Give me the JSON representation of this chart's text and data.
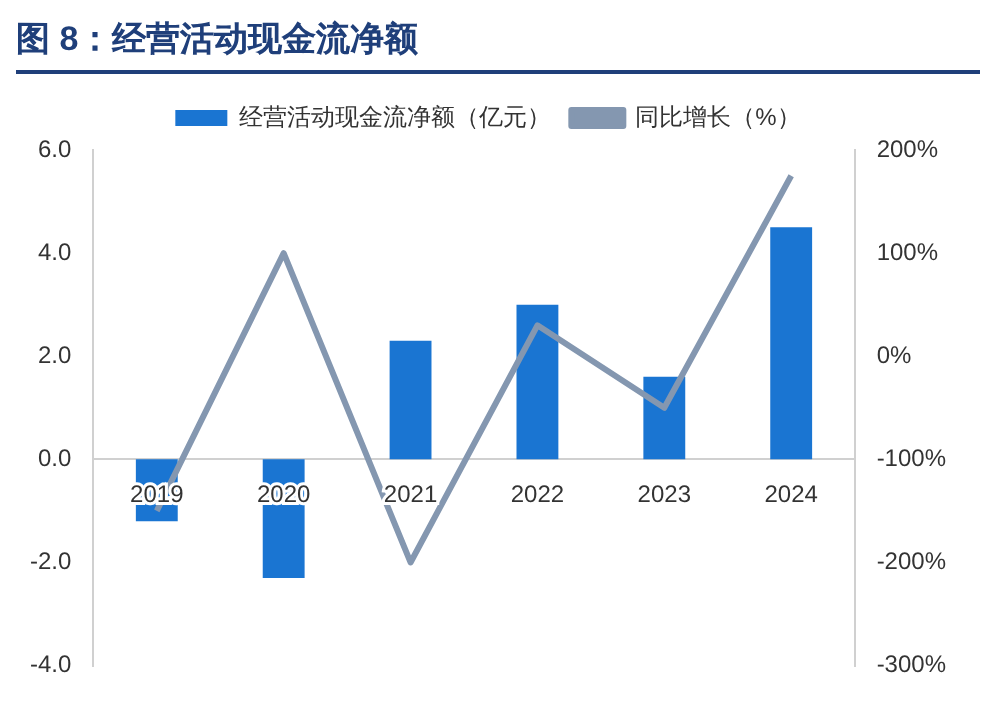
{
  "chart_data": {
    "type": "bar",
    "title": "图 8：经营活动现金流净额",
    "categories": [
      "2019",
      "2020",
      "2021",
      "2022",
      "2023",
      "2024"
    ],
    "series": [
      {
        "name": "经营活动现金流净额（亿元）",
        "color": "#1a75d2",
        "values": [
          -1.2,
          -2.3,
          2.3,
          3.0,
          1.6,
          4.5
        ]
      },
      {
        "name": "同比增长（%）",
        "type": "line",
        "axis": "y2",
        "color": "#8497b0",
        "values": [
          -150,
          100,
          -200,
          30,
          -50,
          175
        ]
      }
    ],
    "ylim": [
      -4,
      6
    ],
    "yticks": [
      {
        "value": -4,
        "label": "-4.0"
      },
      {
        "value": -2,
        "label": "-2.0"
      },
      {
        "value": 0,
        "label": "0.0"
      },
      {
        "value": 2,
        "label": "2.0"
      },
      {
        "value": 4,
        "label": "4.0"
      },
      {
        "value": 6,
        "label": "6.0"
      }
    ],
    "y2lim": [
      -300,
      200
    ],
    "y2ticks": [
      {
        "value": -300,
        "label": "-300%"
      },
      {
        "value": -200,
        "label": "-200%"
      },
      {
        "value": -100,
        "label": "-100%"
      },
      {
        "value": 0,
        "label": "0%"
      },
      {
        "value": 100,
        "label": "100%"
      },
      {
        "value": 200,
        "label": "200%"
      }
    ],
    "grid": false,
    "legend": "top",
    "marker": "none",
    "line_style": "solid"
  }
}
